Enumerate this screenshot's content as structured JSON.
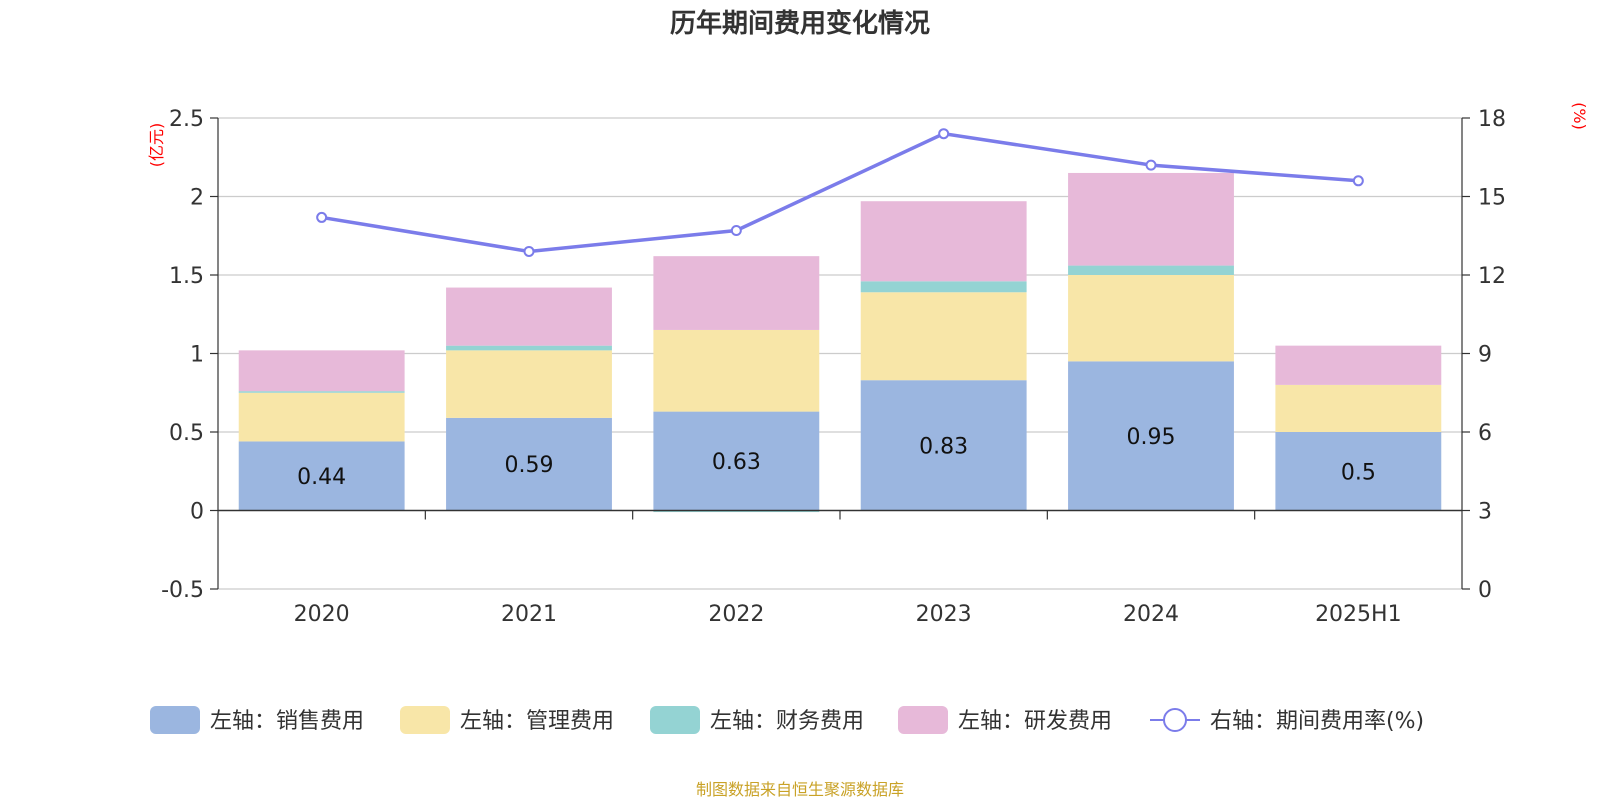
{
  "colors": {
    "sales": "#9bb6e0",
    "admin": "#f8e6a8",
    "finance": "#94d3d3",
    "rd": "#e7b9d9",
    "rate_line": "#7b7cea",
    "grid": "#cccccc",
    "axis": "#333333",
    "unit_label": "#ff0000",
    "source": "#c9a227"
  },
  "chart_data": {
    "type": "bar",
    "title": "历年期间费用变化情况",
    "left_unit": "(亿元)",
    "right_unit": "(%)",
    "categories": [
      "2020",
      "2021",
      "2022",
      "2023",
      "2024",
      "2025H1"
    ],
    "ylim_left": [
      -0.5,
      2.5
    ],
    "yticks_left": [
      "-0.5",
      "0",
      "0.5",
      "1",
      "1.5",
      "2",
      "2.5"
    ],
    "ylim_right": [
      0,
      18
    ],
    "yticks_right": [
      "0",
      "3",
      "6",
      "9",
      "12",
      "15",
      "18"
    ],
    "grid": true,
    "legend_position": "bottom",
    "stacked": true,
    "series": [
      {
        "key": "sales",
        "name": "左轴：销售费用",
        "axis": "left",
        "kind": "bar",
        "values": [
          0.44,
          0.59,
          0.63,
          0.83,
          0.95,
          0.5
        ],
        "labels": [
          "0.44",
          "0.59",
          "0.63",
          "0.83",
          "0.95",
          "0.5"
        ]
      },
      {
        "key": "admin",
        "name": "左轴：管理费用",
        "axis": "left",
        "kind": "bar",
        "values": [
          0.31,
          0.43,
          0.52,
          0.56,
          0.55,
          0.3
        ]
      },
      {
        "key": "finance",
        "name": "左轴：财务费用",
        "axis": "left",
        "kind": "bar",
        "values": [
          0.01,
          0.03,
          -0.01,
          0.07,
          0.06,
          0.0
        ]
      },
      {
        "key": "rd",
        "name": "左轴：研发费用",
        "axis": "left",
        "kind": "bar",
        "values": [
          0.26,
          0.37,
          0.47,
          0.51,
          0.59,
          0.25
        ]
      },
      {
        "key": "rate",
        "name": "右轴：期间费用率(%)",
        "axis": "right",
        "kind": "line",
        "values": [
          14.2,
          12.9,
          13.7,
          17.4,
          16.2,
          15.6
        ]
      }
    ],
    "source_note": "制图数据来自恒生聚源数据库"
  }
}
